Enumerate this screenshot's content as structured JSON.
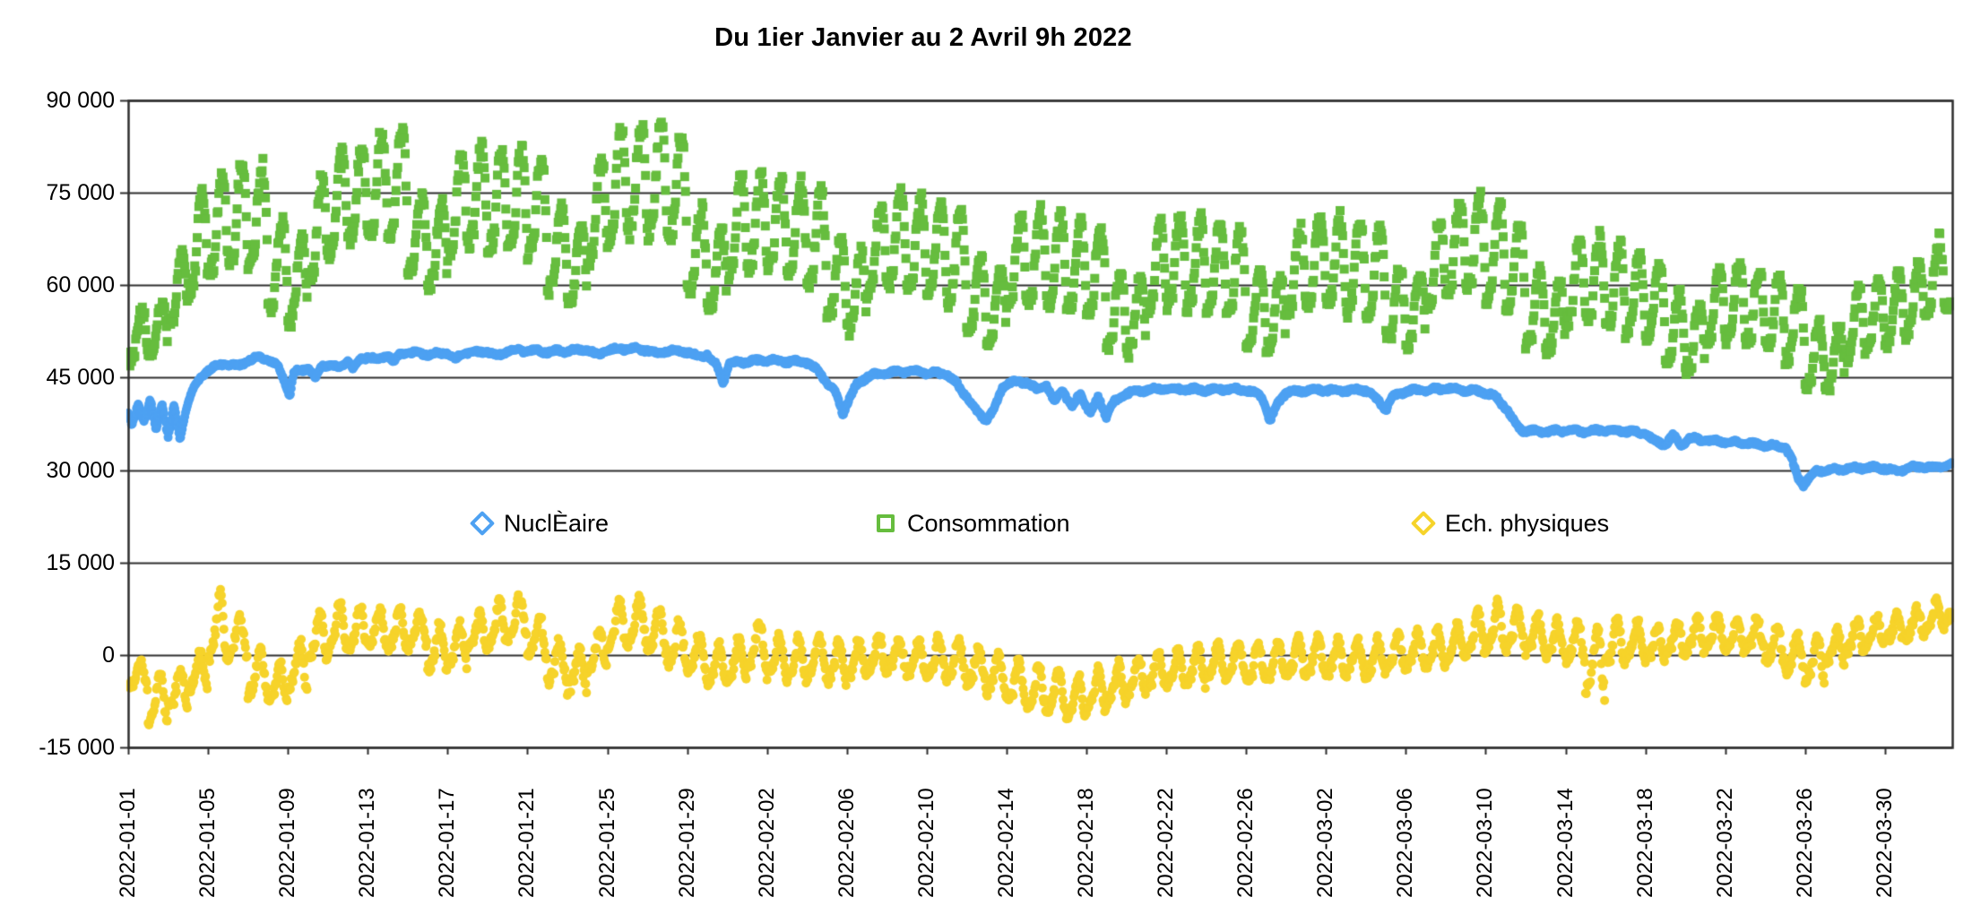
{
  "title": "Du 1ier Janvier au 2 Avril 9h 2022",
  "legend": [
    {
      "label": "NuclÈaire",
      "color": "#4da1f2",
      "marker": "diamond"
    },
    {
      "label": "Consommation",
      "color": "#66bd3e",
      "marker": "square"
    },
    {
      "label": "Ech. physiques",
      "color": "#f6d32a",
      "marker": "diamond"
    }
  ],
  "y_axis": {
    "tick_labels": [
      "90 000",
      "75 000",
      "60 000",
      "45 000",
      "30 000",
      "15 000",
      "0",
      "-15 000"
    ],
    "tick_values": [
      90000,
      75000,
      60000,
      45000,
      30000,
      15000,
      0,
      -15000
    ],
    "min": -15000,
    "max": 90000
  },
  "x_axis": {
    "tick_interval_days": 4,
    "tick_labels": [
      "2022-01-01",
      "2022-01-05",
      "2022-01-09",
      "2022-01-13",
      "2022-01-17",
      "2022-01-21",
      "2022-01-25",
      "2022-01-29",
      "2022-02-02",
      "2022-02-06",
      "2022-02-10",
      "2022-02-14",
      "2022-02-18",
      "2022-02-22",
      "2022-02-26",
      "2022-03-02",
      "2022-03-06",
      "2022-03-10",
      "2022-03-14",
      "2022-03-18",
      "2022-03-22",
      "2022-03-26",
      "2022-03-30"
    ]
  },
  "chart_data": {
    "type": "scatter",
    "title": "Du 1ier Janvier au 2 Avril 9h 2022",
    "xlabel": "",
    "ylabel": "",
    "x_start_day": 0,
    "x_end_day": 91.375,
    "x_start_label": "2022-01-01",
    "x_end_label": "2022-04-02 9h",
    "ylim": [
      -15000,
      90000
    ],
    "grid": true,
    "legend_position": "inside-middle",
    "series": [
      {
        "name": "NuclÈaire",
        "color": "#4da1f2",
        "marker": "circle",
        "sampling": "hourly scatter around backbone",
        "points": [
          [
            0,
            39500
          ],
          [
            0.2,
            37200
          ],
          [
            0.5,
            40500
          ],
          [
            0.8,
            38000
          ],
          [
            1.1,
            41800
          ],
          [
            1.4,
            36200
          ],
          [
            1.7,
            41000
          ],
          [
            2,
            35500
          ],
          [
            2.3,
            40500
          ],
          [
            2.6,
            34800
          ],
          [
            2.9,
            40000
          ],
          [
            3.2,
            43000
          ],
          [
            3.6,
            44800
          ],
          [
            4,
            46300
          ],
          [
            4.5,
            47000
          ],
          [
            5,
            47300
          ],
          [
            5.5,
            46800
          ],
          [
            6,
            47800
          ],
          [
            6.5,
            48200
          ],
          [
            7,
            48000
          ],
          [
            7.5,
            46800
          ],
          [
            7.9,
            44000
          ],
          [
            8.1,
            42000
          ],
          [
            8.3,
            45800
          ],
          [
            9,
            46600
          ],
          [
            9.4,
            44800
          ],
          [
            9.7,
            46900
          ],
          [
            10,
            47200
          ],
          [
            10.5,
            46500
          ],
          [
            11,
            47800
          ],
          [
            11.3,
            46200
          ],
          [
            11.6,
            48000
          ],
          [
            12,
            48400
          ],
          [
            12.5,
            47800
          ],
          [
            13,
            48800
          ],
          [
            13.3,
            47400
          ],
          [
            13.6,
            48800
          ],
          [
            14,
            49000
          ],
          [
            15,
            48800
          ],
          [
            16,
            49000
          ],
          [
            16.4,
            47800
          ],
          [
            16.8,
            49200
          ],
          [
            17.5,
            49000
          ],
          [
            18,
            49300
          ],
          [
            18.5,
            48500
          ],
          [
            19,
            49300
          ],
          [
            20,
            49400
          ],
          [
            21,
            49200
          ],
          [
            22,
            49400
          ],
          [
            23,
            49500
          ],
          [
            23.5,
            48600
          ],
          [
            24,
            49500
          ],
          [
            25,
            49700
          ],
          [
            26,
            49500
          ],
          [
            26.5,
            48800
          ],
          [
            27,
            49400
          ],
          [
            28,
            49200
          ],
          [
            28.6,
            48300
          ],
          [
            29,
            48800
          ],
          [
            29.5,
            46800
          ],
          [
            29.8,
            44200
          ],
          [
            30.1,
            47300
          ],
          [
            31,
            47600
          ],
          [
            32,
            47800
          ],
          [
            33,
            47600
          ],
          [
            34,
            47500
          ],
          [
            34.6,
            46000
          ],
          [
            35,
            44200
          ],
          [
            35.4,
            42800
          ],
          [
            35.8,
            39200
          ],
          [
            36.1,
            41500
          ],
          [
            36.5,
            43800
          ],
          [
            37,
            45200
          ],
          [
            38,
            45800
          ],
          [
            39,
            46000
          ],
          [
            40,
            45800
          ],
          [
            41,
            45600
          ],
          [
            41.5,
            44000
          ],
          [
            42,
            42000
          ],
          [
            42.5,
            39500
          ],
          [
            43,
            38200
          ],
          [
            43.4,
            40000
          ],
          [
            43.8,
            43500
          ],
          [
            44.2,
            44200
          ],
          [
            45,
            44300
          ],
          [
            45.5,
            43000
          ],
          [
            46,
            43800
          ],
          [
            46.4,
            41000
          ],
          [
            46.8,
            43000
          ],
          [
            47.3,
            40200
          ],
          [
            47.7,
            42500
          ],
          [
            48.2,
            39200
          ],
          [
            48.6,
            41800
          ],
          [
            49,
            38800
          ],
          [
            49.4,
            41000
          ],
          [
            50,
            42500
          ],
          [
            51,
            43000
          ],
          [
            52,
            43200
          ],
          [
            53,
            43100
          ],
          [
            54,
            43000
          ],
          [
            55,
            43200
          ],
          [
            56,
            43000
          ],
          [
            56.8,
            42000
          ],
          [
            57.2,
            37800
          ],
          [
            57.6,
            41000
          ],
          [
            58,
            42600
          ],
          [
            59,
            42900
          ],
          [
            60,
            43000
          ],
          [
            61,
            42900
          ],
          [
            62,
            43000
          ],
          [
            62.7,
            41000
          ],
          [
            63,
            39800
          ],
          [
            63.3,
            41800
          ],
          [
            64,
            42800
          ],
          [
            65,
            43000
          ],
          [
            66,
            43200
          ],
          [
            67,
            43000
          ],
          [
            68,
            42600
          ],
          [
            68.5,
            41800
          ],
          [
            69,
            40200
          ],
          [
            69.4,
            38000
          ],
          [
            69.8,
            36500
          ],
          [
            70.2,
            36300
          ],
          [
            71,
            36200
          ],
          [
            72,
            36400
          ],
          [
            73,
            36300
          ],
          [
            74,
            36500
          ],
          [
            75,
            36300
          ],
          [
            76,
            36000
          ],
          [
            76.4,
            34800
          ],
          [
            77,
            34200
          ],
          [
            77.4,
            35600
          ],
          [
            77.8,
            34000
          ],
          [
            78.2,
            35200
          ],
          [
            79,
            34800
          ],
          [
            80,
            34600
          ],
          [
            81,
            34400
          ],
          [
            82,
            34000
          ],
          [
            83,
            33800
          ],
          [
            83.3,
            32000
          ],
          [
            83.6,
            29000
          ],
          [
            83.9,
            27600
          ],
          [
            84.2,
            28800
          ],
          [
            84.6,
            29800
          ],
          [
            85,
            30000
          ],
          [
            86,
            30200
          ],
          [
            87,
            30400
          ],
          [
            88,
            30300
          ],
          [
            88.5,
            29800
          ],
          [
            89,
            30200
          ],
          [
            90,
            30600
          ],
          [
            90.5,
            30300
          ],
          [
            91,
            30700
          ],
          [
            91.37,
            30800
          ]
        ]
      },
      {
        "name": "Consommation",
        "color": "#66bd3e",
        "marker": "square",
        "sampling": "hourly scatter between daily min and max",
        "daily_min": [
          45500,
          46000,
          50000,
          54000,
          57000,
          58000,
          58000,
          52000,
          50000,
          56000,
          60000,
          62000,
          63000,
          63000,
          58000,
          56000,
          60000,
          62000,
          61000,
          61000,
          60000,
          55000,
          53000,
          59000,
          62000,
          63000,
          63000,
          62000,
          55000,
          52000,
          57000,
          58000,
          58000,
          57000,
          56000,
          51000,
          49000,
          54000,
          55000,
          55000,
          54000,
          53000,
          48500,
          47000,
          52000,
          53000,
          52500,
          52000,
          51000,
          46500,
          45500,
          51000,
          52500,
          52000,
          52000,
          51000,
          47000,
          46000,
          51000,
          52500,
          52000,
          51500,
          51000,
          47000,
          46500,
          52000,
          54000,
          54500,
          53500,
          52000,
          47000,
          45500,
          50000,
          50500,
          49500,
          48500,
          47500,
          44000,
          43000,
          47000,
          47500,
          47000,
          46000,
          44500,
          40500,
          40000,
          44500,
          46000,
          47000,
          48500,
          51000,
          54000
        ],
        "daily_max": [
          56000,
          57500,
          66000,
          76000,
          78500,
          80500,
          80000,
          71000,
          68000,
          78000,
          82500,
          84000,
          85500,
          86500,
          76000,
          74000,
          82000,
          83000,
          82000,
          82500,
          81500,
          73000,
          71000,
          81000,
          86000,
          87000,
          86500,
          85000,
          73000,
          70000,
          78500,
          79000,
          78000,
          77500,
          76000,
          68000,
          66000,
          74000,
          75500,
          75000,
          74000,
          72500,
          65000,
          63500,
          71500,
          72500,
          72000,
          71000,
          70000,
          62500,
          61500,
          70500,
          72000,
          71500,
          71000,
          70000,
          63000,
          62000,
          70000,
          72000,
          71500,
          71000,
          70000,
          63500,
          62500,
          71500,
          74500,
          75000,
          73500,
          71000,
          63000,
          61000,
          68000,
          68500,
          67000,
          65500,
          64000,
          59000,
          57500,
          63500,
          64000,
          63000,
          62000,
          60000,
          54500,
          53500,
          60000,
          61500,
          62500,
          64500,
          68500,
          64000
        ]
      },
      {
        "name": "Ech. physiques",
        "color": "#f6d32a",
        "marker": "circle",
        "sampling": "hourly scatter between daily min and max",
        "daily_min": [
          -6000,
          -11500,
          -9500,
          -6500,
          -2000,
          -1000,
          -7500,
          -8500,
          -6000,
          -1500,
          0,
          500,
          1000,
          500,
          1000,
          -3500,
          -2500,
          500,
          1000,
          2000,
          -1000,
          -5000,
          -6500,
          -3000,
          500,
          1000,
          0,
          -2000,
          -3500,
          -5500,
          -4500,
          -3000,
          -4000,
          -4500,
          -4000,
          -5000,
          -4500,
          -3500,
          -3000,
          -3500,
          -4000,
          -4500,
          -5500,
          -6500,
          -8500,
          -9500,
          -10000,
          -11000,
          -9500,
          -8000,
          -7000,
          -6000,
          -5500,
          -5000,
          -4500,
          -4000,
          -5000,
          -4500,
          -4000,
          -3500,
          -4000,
          -3500,
          -4000,
          -3000,
          -2500,
          -2000,
          -1500,
          -500,
          0,
          500,
          0,
          -1000,
          -1500,
          -7500,
          -2000,
          -1000,
          -1500,
          -500,
          0,
          500,
          0,
          500,
          -2000,
          -3500,
          -4900,
          -2000,
          0,
          1000,
          1500,
          2500,
          3500,
          5000
        ],
        "daily_max": [
          -1000,
          -3000,
          -2500,
          500,
          10000,
          6000,
          1000,
          -1500,
          2000,
          6500,
          8000,
          7500,
          7000,
          7500,
          6500,
          4500,
          5000,
          6500,
          8500,
          9400,
          6000,
          2000,
          1000,
          3500,
          8500,
          9000,
          7000,
          5000,
          3000,
          1500,
          2500,
          5300,
          3000,
          2500,
          3000,
          2000,
          2500,
          3000,
          2500,
          2000,
          2500,
          2000,
          1000,
          0,
          -1000,
          -2000,
          -3000,
          -3500,
          -2500,
          -1500,
          -500,
          0,
          500,
          1000,
          1500,
          2000,
          1500,
          2000,
          2500,
          3000,
          2500,
          2000,
          2500,
          3000,
          3500,
          4000,
          5000,
          7000,
          8400,
          7500,
          6500,
          5500,
          5000,
          4000,
          5500,
          5000,
          4500,
          5500,
          6000,
          6500,
          6000,
          5500,
          4500,
          3000,
          2500,
          4000,
          5500,
          6000,
          6500,
          7500,
          8500,
          9600
        ]
      }
    ]
  },
  "colors": {
    "background": "#ffffff",
    "grid": "#2e2e2e",
    "text": "#000000"
  }
}
